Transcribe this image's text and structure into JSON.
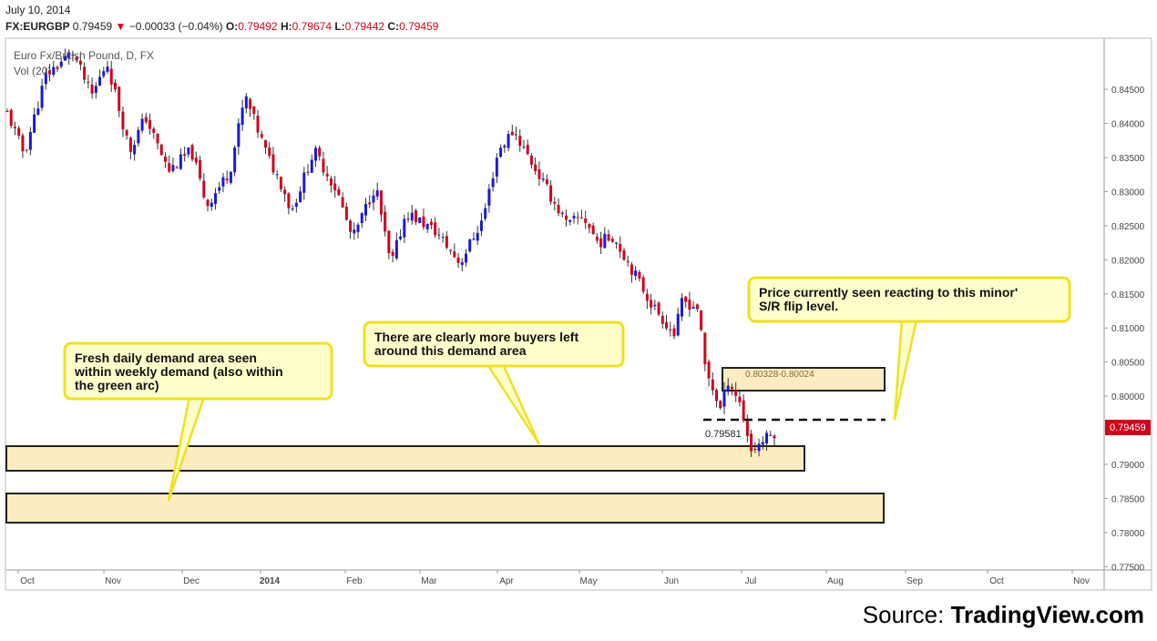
{
  "header": {
    "date": "July 10, 2014",
    "symbol": "FX:EURGBP",
    "last": "0.79459",
    "change": "−0.00033 (−0.04%)",
    "open_label": "O:",
    "open": "0.79492",
    "high_label": "H:",
    "high": "0.79674",
    "low_label": "L:",
    "low": "0.79442",
    "close_label": "C:",
    "close": "0.79459"
  },
  "legend": {
    "series_name": "Euro Fx/British Pound, D, FX",
    "volume_label": "Vol (20)"
  },
  "colors": {
    "up": "#1a1ad6",
    "down": "#d0021b",
    "zone_fill": "#fdecc0",
    "callout_fill": "#ffffcc",
    "callout_border": "#f0e020",
    "price_tag": "#d0021b"
  },
  "chart_data": {
    "type": "candlestick",
    "title": "Euro Fx/British Pound, D, FX",
    "ylim": [
      0.7745,
      0.8525
    ],
    "y_ticks": [
      "0.84500",
      "0.84000",
      "0.83500",
      "0.83000",
      "0.82500",
      "0.82000",
      "0.81500",
      "0.81000",
      "0.80500",
      "0.80000",
      "0.79500",
      "0.79000",
      "0.78500",
      "0.78000",
      "0.77500"
    ],
    "x_labels": [
      "Oct",
      "Nov",
      "Dec",
      "2014",
      "Feb",
      "Mar",
      "Apr",
      "May",
      "Jun",
      "Jul",
      "Aug",
      "Sep",
      "Oct",
      "Nov"
    ],
    "last_price": "0.79459",
    "path_x_fraction": [
      0.0,
      0.022,
      0.05,
      0.085,
      0.11,
      0.13,
      0.16,
      0.18,
      0.21,
      0.24,
      0.26,
      0.29,
      0.31,
      0.34,
      0.36,
      0.37,
      0.4,
      0.43,
      0.45,
      0.48,
      0.5,
      0.52,
      0.56,
      0.59,
      0.62,
      0.64,
      0.66,
      0.7,
      0.73,
      0.75,
      0.77,
      0.79,
      0.81,
      0.82,
      0.84,
      0.87,
      0.88,
      0.9,
      0.91,
      0.93,
      0.94,
      0.955,
      0.97,
      0.985,
      1.0
    ],
    "path_close": [
      0.8415,
      0.8355,
      0.847,
      0.8505,
      0.844,
      0.849,
      0.836,
      0.841,
      0.833,
      0.836,
      0.828,
      0.833,
      0.844,
      0.835,
      0.8305,
      0.827,
      0.836,
      0.83,
      0.823,
      0.831,
      0.819,
      0.827,
      0.824,
      0.8195,
      0.826,
      0.836,
      0.839,
      0.831,
      0.825,
      0.8265,
      0.8225,
      0.8235,
      0.8195,
      0.8175,
      0.8135,
      0.809,
      0.814,
      0.813,
      0.804,
      0.798,
      0.8025,
      0.799,
      0.792,
      0.7935,
      0.7946
    ],
    "zones": [
      {
        "name": "minor S/R flip zone",
        "price_range": [
          0.80024,
          0.80328
        ],
        "label": "0.80328-0.80024"
      },
      {
        "name": "fresh daily demand",
        "price_range": [
          0.7885,
          0.7921
        ]
      },
      {
        "name": "weekly demand",
        "price_range": [
          0.7817,
          0.7858
        ]
      }
    ],
    "flip_level": {
      "price": 0.79581,
      "label": "0.79581"
    },
    "annotations": [
      {
        "name": "fresh-daily-demand-callout",
        "lines": [
          "Fresh daily demand area seen",
          "within weekly demand (also within",
          "the green arc)"
        ]
      },
      {
        "name": "more-buyers-callout",
        "lines": [
          "There are clearly more buyers left",
          "around this demand area"
        ]
      },
      {
        "name": "price-reacting-callout",
        "lines": [
          "Price currently seen reacting to this minor'",
          "S/R flip level."
        ]
      }
    ]
  },
  "footer": {
    "source_prefix": "Source: ",
    "source_brand": "TradingView.com"
  }
}
